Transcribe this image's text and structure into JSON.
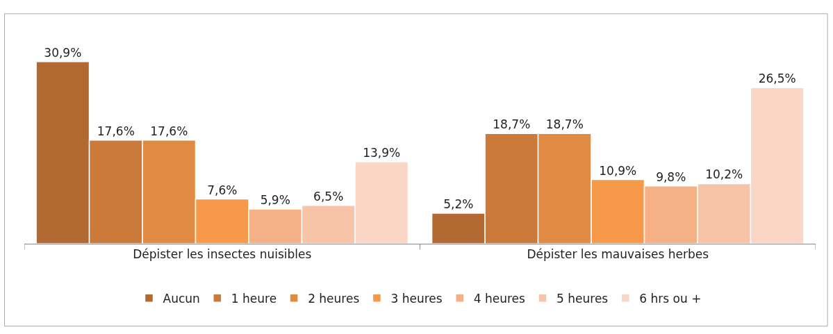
{
  "chart_data": {
    "type": "bar",
    "categories": [
      "Dépister les insectes nuisibles",
      "Dépister les mauvaises herbes"
    ],
    "series": [
      {
        "name": "Aucun",
        "color": "#b36a32",
        "values": [
          30.9,
          5.2
        ],
        "value_labels": [
          "30,9%",
          "5,2%"
        ]
      },
      {
        "name": "1 heure",
        "color": "#cc7a3a",
        "values": [
          17.6,
          18.7
        ],
        "value_labels": [
          "17,6%",
          "18,7%"
        ]
      },
      {
        "name": "2 heures",
        "color": "#e08a42",
        "values": [
          17.6,
          18.7
        ],
        "value_labels": [
          "17,6%",
          "18,7%"
        ]
      },
      {
        "name": "3 heures",
        "color": "#f69a4a",
        "values": [
          7.6,
          10.9
        ],
        "value_labels": [
          "7,6%",
          "10,9%"
        ]
      },
      {
        "name": "4 heures",
        "color": "#f6b085",
        "values": [
          5.9,
          9.8
        ],
        "value_labels": [
          "5,9%",
          "9,8%"
        ]
      },
      {
        "name": "5 heures",
        "color": "#f8c4a8",
        "values": [
          6.5,
          10.2
        ],
        "value_labels": [
          "6,5%",
          "10,2%"
        ]
      },
      {
        "name": "6 hrs ou +",
        "color": "#f9d6c5",
        "values": [
          13.9,
          26.5
        ],
        "value_labels": [
          "13,9%",
          "26,5%"
        ]
      }
    ],
    "tick_labels": "x",
    "legend": "bottom"
  }
}
